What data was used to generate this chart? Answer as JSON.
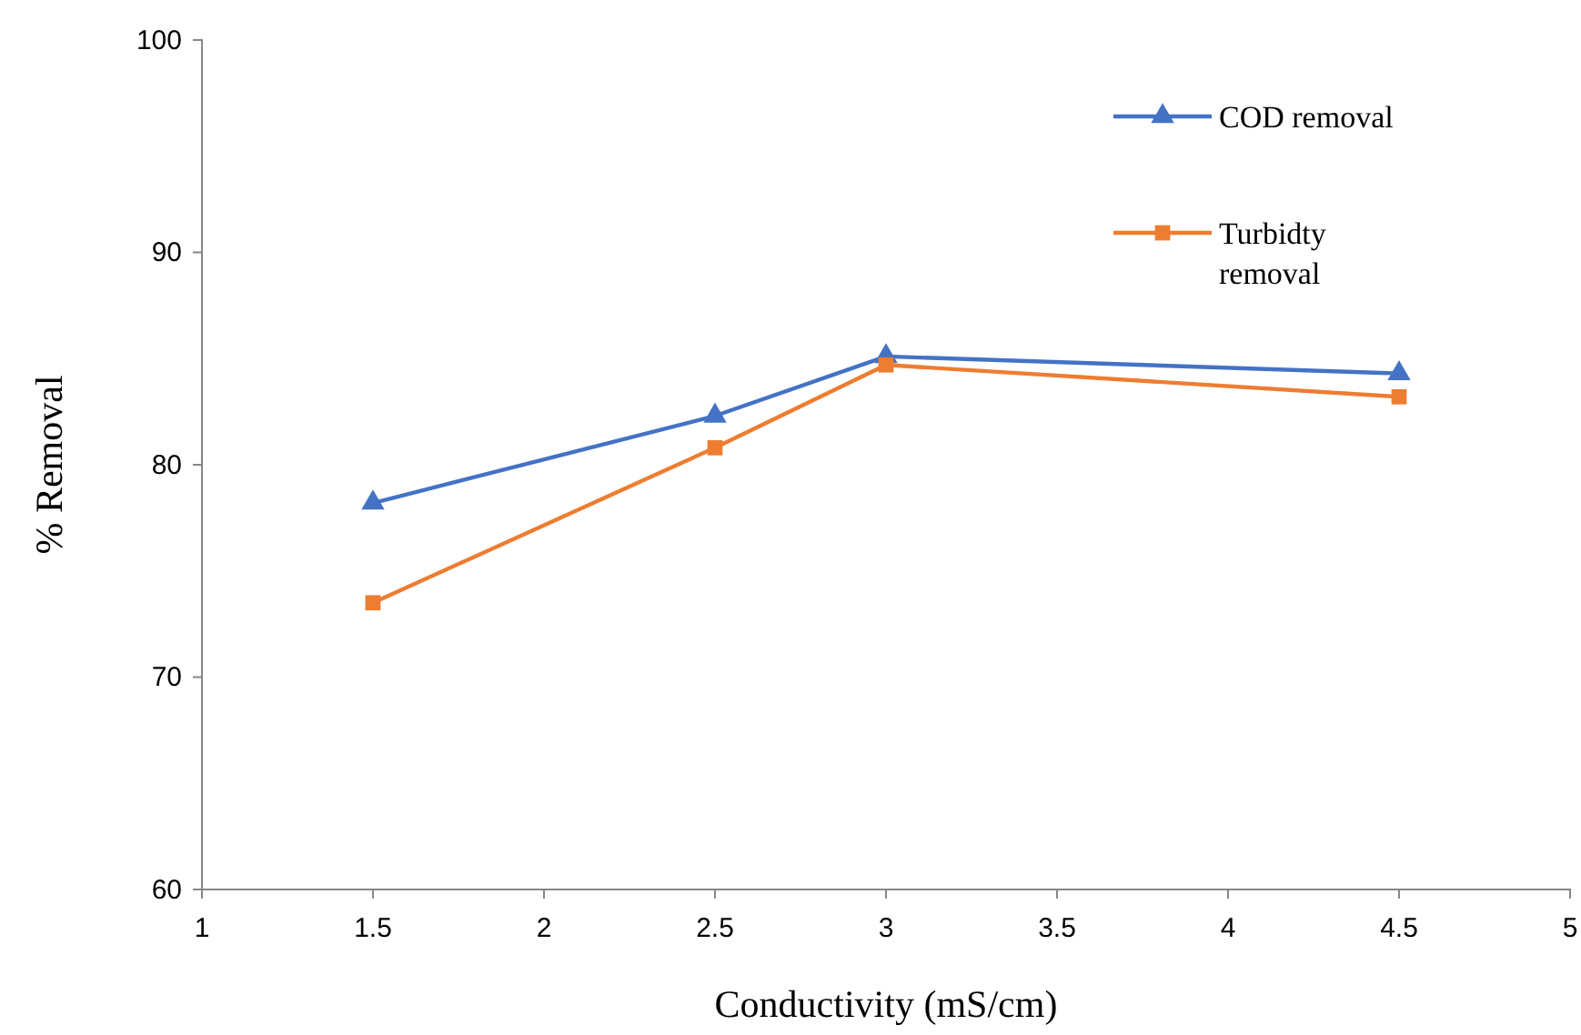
{
  "chart_data": {
    "type": "line",
    "xlabel": "Conductivity (mS/cm)",
    "ylabel": "% Removal",
    "x": [
      1.5,
      2.5,
      3,
      4.5
    ],
    "xlim": [
      1,
      5
    ],
    "xticks": [
      1,
      1.5,
      2,
      2.5,
      3,
      3.5,
      4,
      4.5,
      5
    ],
    "ylim": [
      60,
      100
    ],
    "yticks": [
      60,
      70,
      80,
      90,
      100
    ],
    "grid": false,
    "legend": "top right",
    "series": [
      {
        "name": "COD removal",
        "color": "#4472c4",
        "marker": "triangle",
        "values": [
          78.2,
          82.3,
          85.1,
          84.3
        ]
      },
      {
        "name": "Turbidty removal",
        "color": "#ed7d31",
        "marker": "square",
        "values": [
          73.5,
          80.8,
          84.7,
          83.2
        ]
      }
    ]
  }
}
